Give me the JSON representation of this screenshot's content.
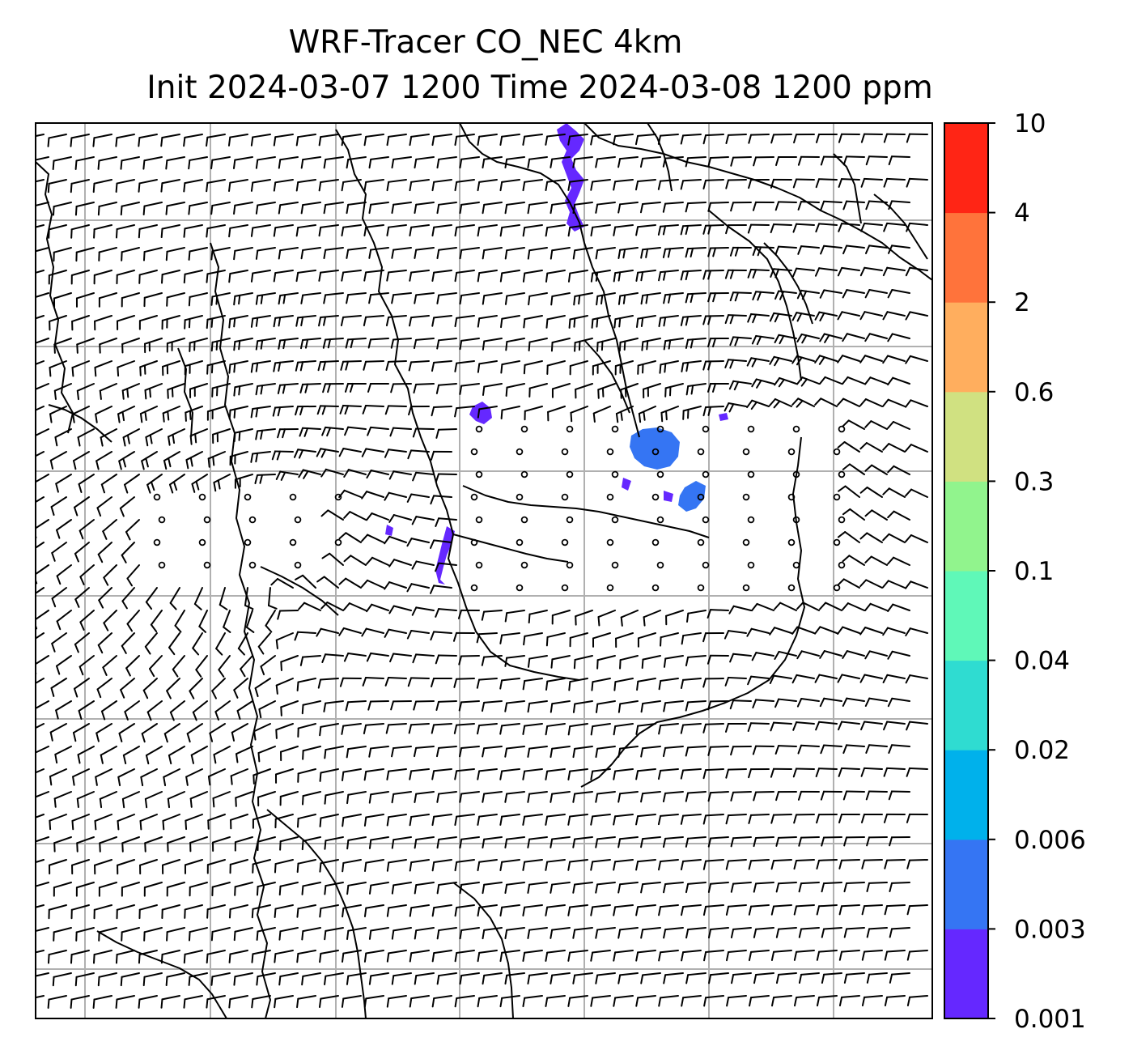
{
  "title": {
    "line1": "WRF-Tracer CO_NEC 4km",
    "line2": "Init 2024-03-07 1200 Time 2024-03-08 1200 ppm"
  },
  "map": {
    "background": "#ffffff",
    "gridline_color": "#b0b0b0",
    "coastline_color": "#000000",
    "barb_color": "#000000",
    "tracer_patches": [
      {
        "region": "north",
        "level": "0.001-0.003"
      },
      {
        "region": "central-west",
        "level": "0.001-0.003"
      },
      {
        "region": "central-east",
        "level": "0.003-0.006"
      },
      {
        "region": "central-south",
        "level": "0.001-0.003"
      }
    ]
  },
  "colorbar": {
    "tick_labels": [
      "0.001",
      "0.003",
      "0.006",
      "0.02",
      "0.04",
      "0.1",
      "0.3",
      "0.6",
      "2",
      "4",
      "10"
    ],
    "colors": [
      "#6528ff",
      "#3575f3",
      "#00b1eb",
      "#2fdcd1",
      "#5ff8b8",
      "#91f48d",
      "#d0e181",
      "#ffae5e",
      "#ff733b",
      "#ff2515"
    ]
  }
}
